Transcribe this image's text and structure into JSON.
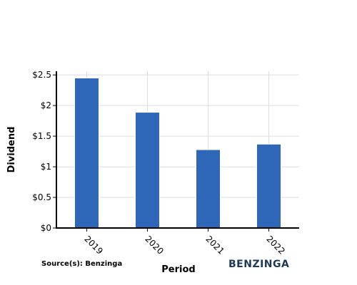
{
  "chart_data": {
    "type": "bar",
    "title": "",
    "xlabel": "Period",
    "ylabel": "Dividend",
    "categories": [
      "2019",
      "2020",
      "2021",
      "2022"
    ],
    "values": [
      2.45,
      1.89,
      1.28,
      1.37
    ],
    "ylim": [
      0,
      2.5
    ],
    "yticks": [
      0,
      0.5,
      1,
      1.5,
      2,
      2.5
    ],
    "ytick_labels": [
      "$0",
      "$0.5",
      "$1",
      "$1.5",
      "$2",
      "$2.5"
    ],
    "grid": true,
    "bar_color": "#2f67b8"
  },
  "footer": {
    "source": "Source(s): Benzinga",
    "brand": "BENZINGA",
    "brand_color": "#1c3a57"
  }
}
